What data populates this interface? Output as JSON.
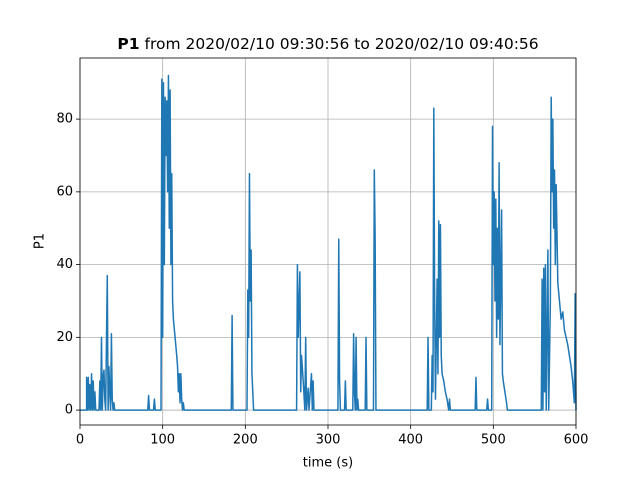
{
  "chart_data": {
    "type": "line",
    "title": {
      "bold": "P1",
      "text": "from 2020/02/10 09:30:56 to 2020/02/10 09:40:56"
    },
    "xlabel": "time (s)",
    "ylabel": "P1",
    "xlim": [
      0,
      600
    ],
    "ylim": [
      -4.1,
      96.8
    ],
    "xticks": [
      0,
      100,
      200,
      300,
      400,
      500,
      600
    ],
    "yticks": [
      0,
      20,
      40,
      60,
      80
    ],
    "grid": true,
    "x": [
      0,
      8,
      8,
      9,
      10,
      11,
      12,
      13,
      14,
      15,
      16,
      17,
      18,
      19,
      23,
      24,
      25,
      26,
      27,
      28,
      29,
      30,
      31,
      33,
      34,
      35,
      36,
      37,
      38,
      39,
      40,
      41,
      42,
      82,
      83,
      84,
      89,
      90,
      91,
      98,
      99,
      100,
      101,
      102,
      103,
      104,
      105,
      106,
      107,
      108,
      109,
      110,
      111,
      112,
      113,
      115,
      117,
      118,
      119,
      120,
      121,
      122,
      123,
      124,
      125,
      126,
      150,
      183,
      184,
      185,
      202,
      203,
      204,
      205,
      206,
      207,
      208,
      210,
      262,
      263,
      264,
      266,
      267,
      268,
      270,
      272,
      273,
      274,
      276,
      277,
      280,
      281,
      282,
      283,
      312,
      313,
      314,
      315,
      320,
      321,
      322,
      330,
      331,
      332,
      333,
      334,
      335,
      336,
      337,
      345,
      346,
      347,
      355,
      356,
      357,
      358,
      420,
      421,
      422,
      425,
      426,
      427,
      428,
      429,
      430,
      432,
      433,
      434,
      435,
      436,
      437,
      438,
      440,
      442,
      444,
      446,
      447,
      448,
      478,
      479,
      480,
      492,
      493,
      494,
      498,
      499,
      500,
      501,
      502,
      503,
      504,
      505,
      506,
      507,
      508,
      510,
      511,
      512,
      514,
      516,
      517,
      558,
      559,
      560,
      561,
      562,
      563,
      564,
      566,
      567,
      569,
      570,
      571,
      572,
      573,
      574,
      575,
      576,
      578,
      580,
      582,
      584,
      586,
      588,
      590,
      592,
      594,
      596,
      598,
      599,
      600
    ],
    "series": [
      {
        "color": "#1f77b4",
        "values": [
          0,
          0,
          9,
          0,
          9,
          0,
          7,
          0,
          10,
          0,
          8,
          0,
          5,
          0,
          0,
          8,
          0,
          20,
          0,
          9,
          11,
          3,
          0,
          37,
          0,
          12,
          5,
          0,
          21,
          3,
          0,
          2,
          0,
          0,
          4,
          0,
          0,
          3,
          0,
          0,
          91,
          20,
          90,
          40,
          86,
          70,
          85,
          60,
          92,
          50,
          88,
          40,
          65,
          30,
          25,
          20,
          15,
          12,
          5,
          10,
          2,
          10,
          3,
          0,
          2,
          0,
          0,
          0,
          26,
          0,
          0,
          33,
          20,
          65,
          30,
          44,
          10,
          0,
          0,
          40,
          20,
          38,
          5,
          15,
          8,
          0,
          20,
          0,
          6,
          0,
          10,
          0,
          8,
          0,
          0,
          47,
          8,
          0,
          0,
          8,
          0,
          0,
          21,
          5,
          0,
          20,
          0,
          3,
          0,
          0,
          20,
          0,
          0,
          66,
          48,
          0,
          0,
          20,
          0,
          0,
          15,
          5,
          83,
          30,
          3,
          36,
          10,
          52,
          20,
          51,
          15,
          10,
          8,
          5,
          3,
          0,
          3,
          0,
          0,
          9,
          0,
          0,
          3,
          0,
          0,
          78,
          40,
          60,
          30,
          58,
          20,
          50,
          25,
          68,
          18,
          55,
          10,
          8,
          5,
          2,
          0,
          0,
          36,
          0,
          39,
          5,
          40,
          0,
          44,
          0,
          30,
          86,
          60,
          80,
          50,
          66,
          40,
          62,
          35,
          30,
          25,
          27,
          22,
          20,
          18,
          15,
          12,
          8,
          2,
          32,
          0
        ]
      }
    ]
  }
}
